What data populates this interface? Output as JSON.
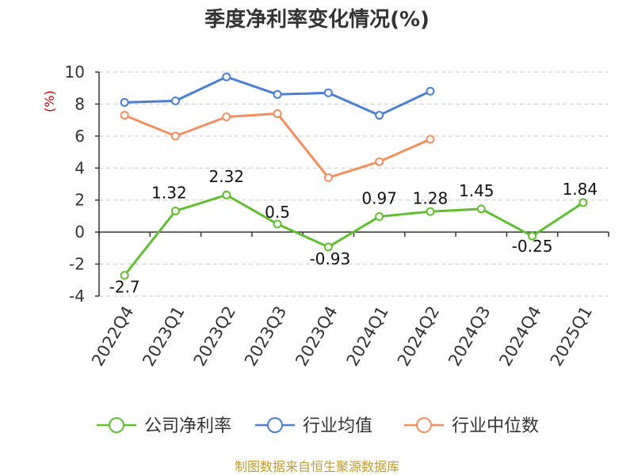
{
  "chart_data": {
    "type": "line",
    "title": "季度净利率变化情况(%)",
    "ylabel": "(%)",
    "xlabel": "",
    "categories": [
      "2022Q4",
      "2023Q1",
      "2023Q2",
      "2023Q3",
      "2023Q4",
      "2024Q1",
      "2024Q2",
      "2024Q3",
      "2024Q4",
      "2025Q1"
    ],
    "ylim": [
      -4,
      10
    ],
    "yticks": [
      -4,
      -2,
      0,
      2,
      4,
      6,
      8,
      10
    ],
    "grid": true,
    "legend_position": "bottom",
    "series": [
      {
        "name": "公司净利率",
        "color": "#5fbf2f",
        "values": [
          -2.7,
          1.32,
          2.32,
          0.5,
          -0.93,
          0.97,
          1.28,
          1.45,
          -0.25,
          1.84
        ],
        "labels": [
          "-2.7",
          "1.32",
          "2.32",
          "0.5",
          "-0.93",
          "0.97",
          "1.28",
          "1.45",
          "-0.25",
          "1.84"
        ]
      },
      {
        "name": "行业均值",
        "color": "#4a7fd6",
        "values": [
          8.1,
          8.2,
          9.7,
          8.6,
          8.7,
          7.3,
          8.8,
          null,
          null,
          null
        ]
      },
      {
        "name": "行业中位数",
        "color": "#f58e5a",
        "values": [
          7.3,
          6.0,
          7.2,
          7.4,
          3.4,
          4.4,
          5.8,
          null,
          null,
          null
        ]
      }
    ]
  },
  "source": "制图数据来自恒生聚源数据库"
}
